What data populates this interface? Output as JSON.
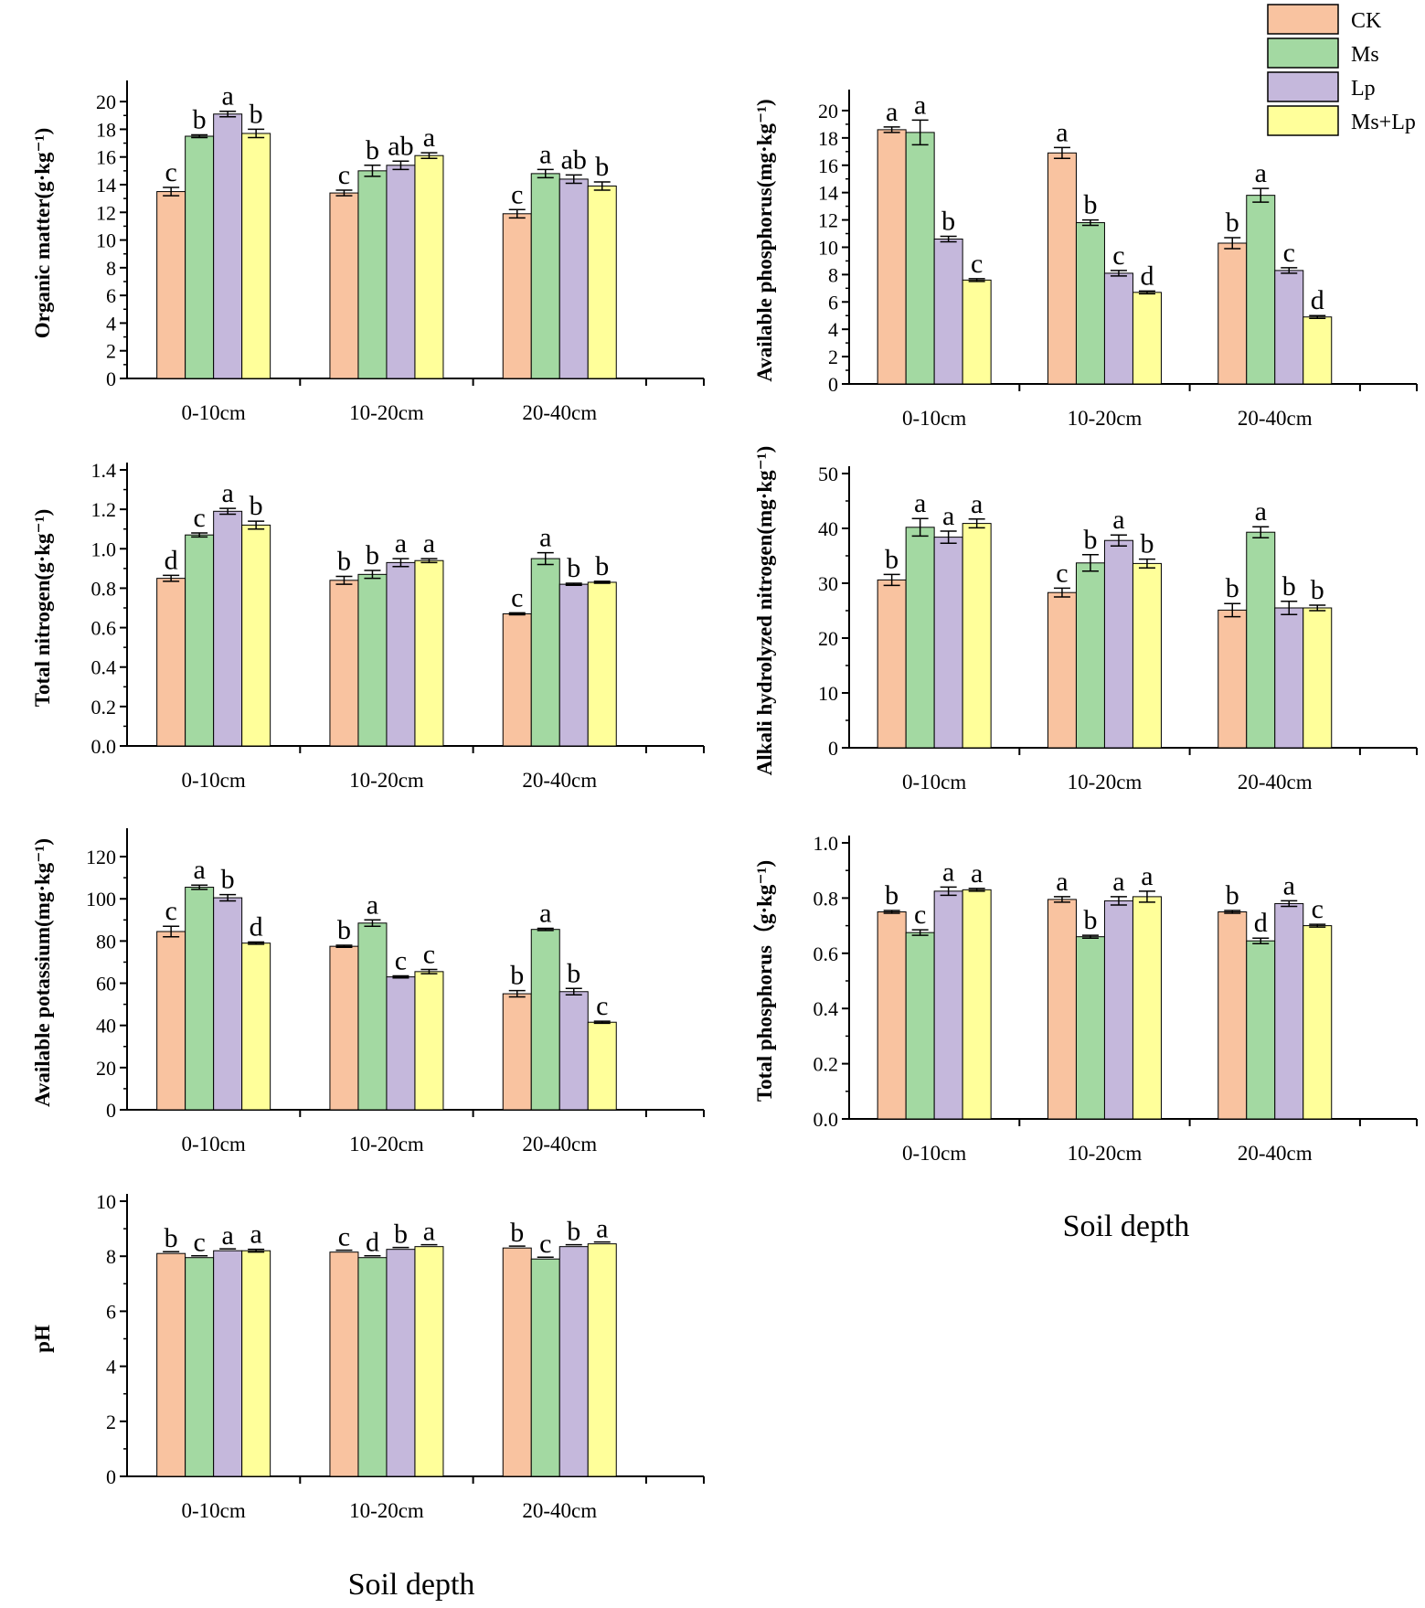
{
  "figure": {
    "x_title": "Soil depth",
    "legend": {
      "entries": [
        {
          "name": "CK",
          "color": "#F9C3A0"
        },
        {
          "name": "Ms",
          "color": "#A3D9A2"
        },
        {
          "name": "Lp",
          "color": "#C5B8DC"
        },
        {
          "name": "Ms+Lp",
          "color": "#FFFF9A"
        }
      ]
    }
  },
  "chart_data": [
    {
      "id": "organic-matter",
      "type": "bar",
      "ylabel": "Organic matter(g·kg⁻¹)",
      "categories": [
        "0-10cm",
        "10-20cm",
        "20-40cm"
      ],
      "ylim": [
        0,
        21
      ],
      "yticks": [
        0,
        2,
        4,
        6,
        8,
        10,
        12,
        14,
        16,
        18,
        20
      ],
      "series": [
        {
          "name": "CK",
          "values": [
            13.5,
            13.4,
            11.9
          ],
          "errors": [
            0.3,
            0.2,
            0.3
          ],
          "letters": [
            "c",
            "c",
            "c"
          ]
        },
        {
          "name": "Ms",
          "values": [
            17.5,
            15.0,
            14.8
          ],
          "errors": [
            0.1,
            0.4,
            0.3
          ],
          "letters": [
            "b",
            "b",
            "a"
          ]
        },
        {
          "name": "Lp",
          "values": [
            19.1,
            15.4,
            14.4
          ],
          "errors": [
            0.2,
            0.3,
            0.3
          ],
          "letters": [
            "a",
            "ab",
            "ab"
          ]
        },
        {
          "name": "Ms+Lp",
          "values": [
            17.7,
            16.1,
            13.9
          ],
          "errors": [
            0.3,
            0.2,
            0.3
          ],
          "letters": [
            "b",
            "a",
            "b"
          ]
        }
      ]
    },
    {
      "id": "available-phosphorus",
      "type": "bar",
      "ylabel": "Available phosphorus(mg·kg⁻¹)",
      "categories": [
        "0-10cm",
        "10-20cm",
        "20-40cm"
      ],
      "ylim": [
        0,
        21
      ],
      "yticks": [
        0,
        2,
        4,
        6,
        8,
        10,
        12,
        14,
        16,
        18,
        20
      ],
      "series": [
        {
          "name": "CK",
          "values": [
            18.6,
            16.9,
            10.3
          ],
          "errors": [
            0.2,
            0.4,
            0.4
          ],
          "letters": [
            "a",
            "a",
            "b"
          ]
        },
        {
          "name": "Ms",
          "values": [
            18.4,
            11.8,
            13.8
          ],
          "errors": [
            0.9,
            0.2,
            0.5
          ],
          "letters": [
            "a",
            "b",
            "a"
          ]
        },
        {
          "name": "Lp",
          "values": [
            10.6,
            8.1,
            8.3
          ],
          "errors": [
            0.2,
            0.2,
            0.2
          ],
          "letters": [
            "b",
            "c",
            "c"
          ]
        },
        {
          "name": "Ms+Lp",
          "values": [
            7.6,
            6.7,
            4.9
          ],
          "errors": [
            0.1,
            0.1,
            0.1
          ],
          "letters": [
            "c",
            "d",
            "d"
          ]
        }
      ]
    },
    {
      "id": "total-nitrogen",
      "type": "bar",
      "ylabel": "Total nitrogen(g·kg⁻¹)",
      "categories": [
        "0-10cm",
        "10-20cm",
        "20-40cm"
      ],
      "ylim": [
        0,
        1.4
      ],
      "yticks": [
        0.0,
        0.2,
        0.4,
        0.6,
        0.8,
        1.0,
        1.2,
        1.4
      ],
      "tickDecimals": 1,
      "series": [
        {
          "name": "CK",
          "values": [
            0.85,
            0.84,
            0.67
          ],
          "errors": [
            0.015,
            0.02,
            0.005
          ],
          "letters": [
            "d",
            "b",
            "c"
          ]
        },
        {
          "name": "Ms",
          "values": [
            1.07,
            0.87,
            0.95
          ],
          "errors": [
            0.01,
            0.02,
            0.03
          ],
          "letters": [
            "c",
            "b",
            "a"
          ]
        },
        {
          "name": "Lp",
          "values": [
            1.19,
            0.93,
            0.82
          ],
          "errors": [
            0.015,
            0.02,
            0.005
          ],
          "letters": [
            "a",
            "a",
            "b"
          ]
        },
        {
          "name": "Ms+Lp",
          "values": [
            1.12,
            0.94,
            0.83
          ],
          "errors": [
            0.02,
            0.01,
            0.005
          ],
          "letters": [
            "b",
            "a",
            "b"
          ]
        }
      ]
    },
    {
      "id": "alkali-hydrolyzed-nitrogen",
      "type": "bar",
      "ylabel": "Alkali hydrolyzed nitrogen(mg·kg⁻¹)",
      "categories": [
        "0-10cm",
        "10-20cm",
        "20-40cm"
      ],
      "ylim": [
        0,
        50
      ],
      "yticks": [
        0,
        10,
        20,
        30,
        40,
        50
      ],
      "series": [
        {
          "name": "CK",
          "values": [
            30.6,
            28.3,
            25.1
          ],
          "errors": [
            1.0,
            0.8,
            1.2
          ],
          "letters": [
            "b",
            "c",
            "b"
          ]
        },
        {
          "name": "Ms",
          "values": [
            40.2,
            33.7,
            39.3
          ],
          "errors": [
            1.6,
            1.5,
            1.0
          ],
          "letters": [
            "a",
            "b",
            "a"
          ]
        },
        {
          "name": "Lp",
          "values": [
            38.4,
            37.8,
            25.5
          ],
          "errors": [
            1.1,
            1.0,
            1.2
          ],
          "letters": [
            "a",
            "a",
            "b"
          ]
        },
        {
          "name": "Ms+Lp",
          "values": [
            40.9,
            33.6,
            25.5
          ],
          "errors": [
            0.8,
            0.8,
            0.5
          ],
          "letters": [
            "a",
            "b",
            "b"
          ]
        }
      ]
    },
    {
      "id": "available-potassium",
      "type": "bar",
      "ylabel": "Available potassium(mg·kg⁻¹)",
      "categories": [
        "0-10cm",
        "10-20cm",
        "20-40cm"
      ],
      "ylim": [
        0,
        130
      ],
      "yticks": [
        0,
        20,
        40,
        60,
        80,
        100,
        120
      ],
      "series": [
        {
          "name": "CK",
          "values": [
            84.5,
            77.5,
            55.0
          ],
          "errors": [
            2.5,
            0.5,
            1.5
          ],
          "letters": [
            "c",
            "b",
            "b"
          ]
        },
        {
          "name": "Ms",
          "values": [
            105.5,
            88.5,
            85.5
          ],
          "errors": [
            1.0,
            1.5,
            0.5
          ],
          "letters": [
            "a",
            "a",
            "a"
          ]
        },
        {
          "name": "Lp",
          "values": [
            100.5,
            63.0,
            56.0
          ],
          "errors": [
            1.5,
            0.5,
            1.5
          ],
          "letters": [
            "b",
            "c",
            "b"
          ]
        },
        {
          "name": "Ms+Lp",
          "values": [
            79.0,
            65.5,
            41.5
          ],
          "errors": [
            0.5,
            1.0,
            0.5
          ],
          "letters": [
            "d",
            "c",
            "c"
          ]
        }
      ]
    },
    {
      "id": "total-phosphorus",
      "type": "bar",
      "ylabel": "Total phosphorus（g·kg⁻¹)",
      "categories": [
        "0-10cm",
        "10-20cm",
        "20-40cm"
      ],
      "ylim": [
        0,
        1.0
      ],
      "yticks": [
        0.0,
        0.2,
        0.4,
        0.6,
        0.8,
        1.0
      ],
      "tickDecimals": 1,
      "series": [
        {
          "name": "CK",
          "values": [
            0.75,
            0.795,
            0.75
          ],
          "errors": [
            0.005,
            0.01,
            0.005
          ],
          "letters": [
            "b",
            "a",
            "b"
          ]
        },
        {
          "name": "Ms",
          "values": [
            0.675,
            0.66,
            0.645
          ],
          "errors": [
            0.01,
            0.005,
            0.01
          ],
          "letters": [
            "c",
            "b",
            "d"
          ]
        },
        {
          "name": "Lp",
          "values": [
            0.825,
            0.79,
            0.78
          ],
          "errors": [
            0.015,
            0.015,
            0.01
          ],
          "letters": [
            "a",
            "a",
            "a"
          ]
        },
        {
          "name": "Ms+Lp",
          "values": [
            0.83,
            0.805,
            0.7
          ],
          "errors": [
            0.005,
            0.02,
            0.005
          ],
          "letters": [
            "a",
            "a",
            "c"
          ]
        }
      ]
    },
    {
      "id": "ph",
      "type": "bar",
      "ylabel": "pH",
      "categories": [
        "0-10cm",
        "10-20cm",
        "20-40cm"
      ],
      "ylim": [
        0,
        10
      ],
      "yticks": [
        0,
        2,
        4,
        6,
        8,
        10
      ],
      "series": [
        {
          "name": "CK",
          "values": [
            8.1,
            8.15,
            8.3
          ],
          "errors": [
            0.0,
            0.0,
            0.0
          ],
          "letters": [
            "b",
            "c",
            "b"
          ]
        },
        {
          "name": "Ms",
          "values": [
            7.95,
            7.95,
            7.9
          ],
          "errors": [
            0.0,
            0.0,
            0.0
          ],
          "letters": [
            "c",
            "d",
            "c"
          ]
        },
        {
          "name": "Lp",
          "values": [
            8.2,
            8.25,
            8.35
          ],
          "errors": [
            0.0,
            0.0,
            0.0
          ],
          "letters": [
            "a",
            "b",
            "b"
          ]
        },
        {
          "name": "Ms+Lp",
          "values": [
            8.2,
            8.35,
            8.45
          ],
          "errors": [
            0.05,
            0.0,
            0.0
          ],
          "letters": [
            "a",
            "a",
            "a"
          ]
        }
      ]
    }
  ]
}
